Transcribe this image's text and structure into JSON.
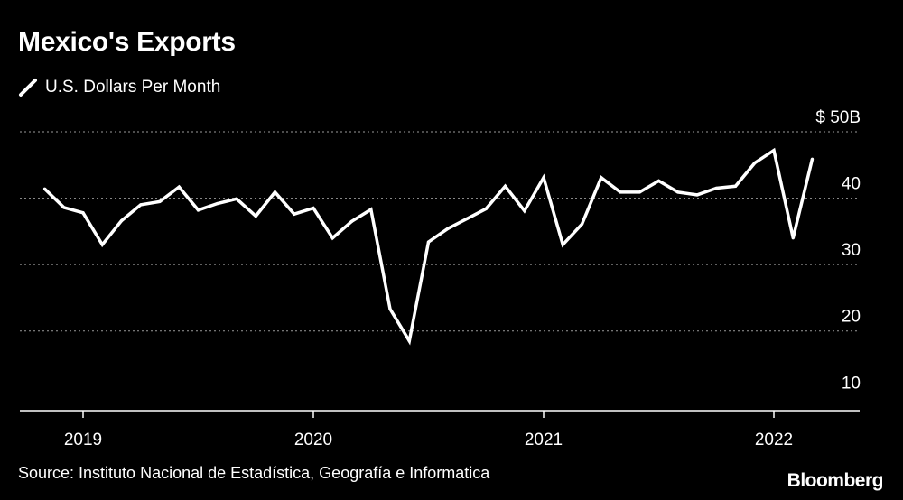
{
  "title": "Mexico's Exports",
  "legend_label": "U.S. Dollars Per Month",
  "source": "Source: Instituto Nacional de Estadística, Geografía e Informatica",
  "logo": "Bloomberg",
  "colors": {
    "background": "#000000",
    "line": "#ffffff",
    "grid": "#9a9a9a"
  },
  "chart_data": {
    "type": "line",
    "title": "Mexico's Exports",
    "ylabel": "U.S. Dollars Per Month",
    "ylim": [
      8,
      50
    ],
    "y_ticks": [
      {
        "value": 50,
        "label": "$ 50B"
      },
      {
        "value": 40,
        "label": "40"
      },
      {
        "value": 30,
        "label": "30"
      },
      {
        "value": 20,
        "label": "20"
      },
      {
        "value": 10,
        "label": "10"
      }
    ],
    "x_ticks": [
      "2019",
      "2020",
      "2021",
      "2022"
    ],
    "grid": "horizontal dotted",
    "series": [
      {
        "name": "U.S. Dollars Per Month",
        "x": [
          "2018-11",
          "2018-12",
          "2019-01",
          "2019-02",
          "2019-03",
          "2019-04",
          "2019-05",
          "2019-06",
          "2019-07",
          "2019-08",
          "2019-09",
          "2019-10",
          "2019-11",
          "2019-12",
          "2020-01",
          "2020-02",
          "2020-03",
          "2020-04",
          "2020-05",
          "2020-06",
          "2020-07",
          "2020-08",
          "2020-09",
          "2020-10",
          "2020-11",
          "2020-12",
          "2021-01",
          "2021-02",
          "2021-03",
          "2021-04",
          "2021-05",
          "2021-06",
          "2021-07",
          "2021-08",
          "2021-09",
          "2021-10",
          "2021-11",
          "2021-12",
          "2022-01",
          "2022-02",
          "2022-03"
        ],
        "values": [
          41.4,
          38.6,
          37.8,
          33.0,
          36.6,
          39.0,
          39.5,
          41.7,
          38.2,
          39.2,
          39.9,
          37.3,
          40.9,
          37.6,
          38.5,
          34.0,
          36.5,
          38.3,
          23.3,
          18.5,
          33.4,
          35.4,
          36.9,
          38.4,
          41.8,
          38.1,
          43.1,
          33.0,
          36.1,
          43.1,
          40.9,
          40.9,
          42.6,
          40.9,
          40.5,
          41.5,
          41.8,
          45.3,
          47.2,
          34.0,
          45.9
        ]
      }
    ]
  }
}
